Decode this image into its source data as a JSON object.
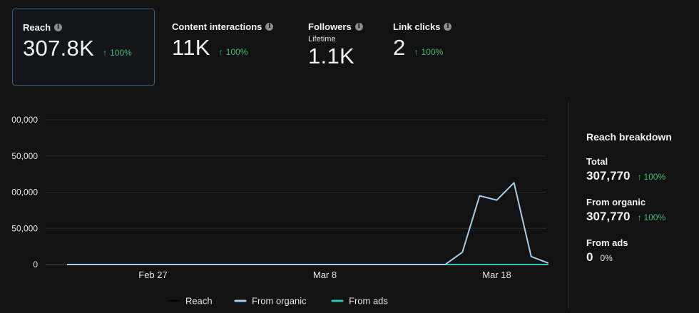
{
  "metrics": [
    {
      "title": "Reach",
      "value": "307.8K",
      "change": "100%",
      "arrow": "↑",
      "info": "i"
    },
    {
      "title": "Content interactions",
      "value": "11K",
      "change": "100%",
      "arrow": "↑",
      "info": "i"
    },
    {
      "title": "Followers",
      "subtitle": "Lifetime",
      "value": "1.1K",
      "info": "i"
    },
    {
      "title": "Link clicks",
      "value": "2",
      "change": "100%",
      "arrow": "↑",
      "info": "i"
    }
  ],
  "breakdown": {
    "title": "Reach breakdown",
    "items": [
      {
        "label": "Total",
        "value": "307,770",
        "change": "100%",
        "arrow": "↑"
      },
      {
        "label": "From organic",
        "value": "307,770",
        "change": "100%",
        "arrow": "↑"
      },
      {
        "label": "From ads",
        "value": "0",
        "change": "0%"
      }
    ]
  },
  "colors": {
    "reach": "#050505",
    "organic": "#a3cfef",
    "ads": "#2ec4b6",
    "positive": "#3fbc72",
    "selected_border": "#3d5e7e"
  },
  "chart_data": {
    "type": "line",
    "y_tick_labels": [
      "0",
      "50,000",
      "00,000",
      "50,000",
      "00,000"
    ],
    "x_tick_labels": [
      "Feb 27",
      "Mar 8",
      "Mar 18"
    ],
    "series": [
      {
        "name": "Reach",
        "values": [
          0,
          0,
          0,
          0,
          0,
          0,
          0,
          0,
          0,
          0,
          0,
          0,
          0,
          0,
          0,
          0,
          0,
          0,
          0,
          0,
          0,
          0,
          0,
          17000,
          95000,
          89000,
          113000,
          11000,
          2000
        ]
      },
      {
        "name": "From organic",
        "values": [
          0,
          0,
          0,
          0,
          0,
          0,
          0,
          0,
          0,
          0,
          0,
          0,
          0,
          0,
          0,
          0,
          0,
          0,
          0,
          0,
          0,
          0,
          0,
          17000,
          95000,
          89000,
          113000,
          11000,
          2000
        ]
      },
      {
        "name": "From ads",
        "values": [
          0,
          0,
          0,
          0,
          0,
          0,
          0,
          0,
          0,
          0,
          0,
          0,
          0,
          0,
          0,
          0,
          0,
          0,
          0,
          0,
          0,
          0,
          0,
          0,
          0,
          0,
          0,
          0,
          0
        ]
      }
    ],
    "ylim": [
      0,
      200000
    ],
    "grid": true,
    "legend_position": "bottom-center"
  }
}
